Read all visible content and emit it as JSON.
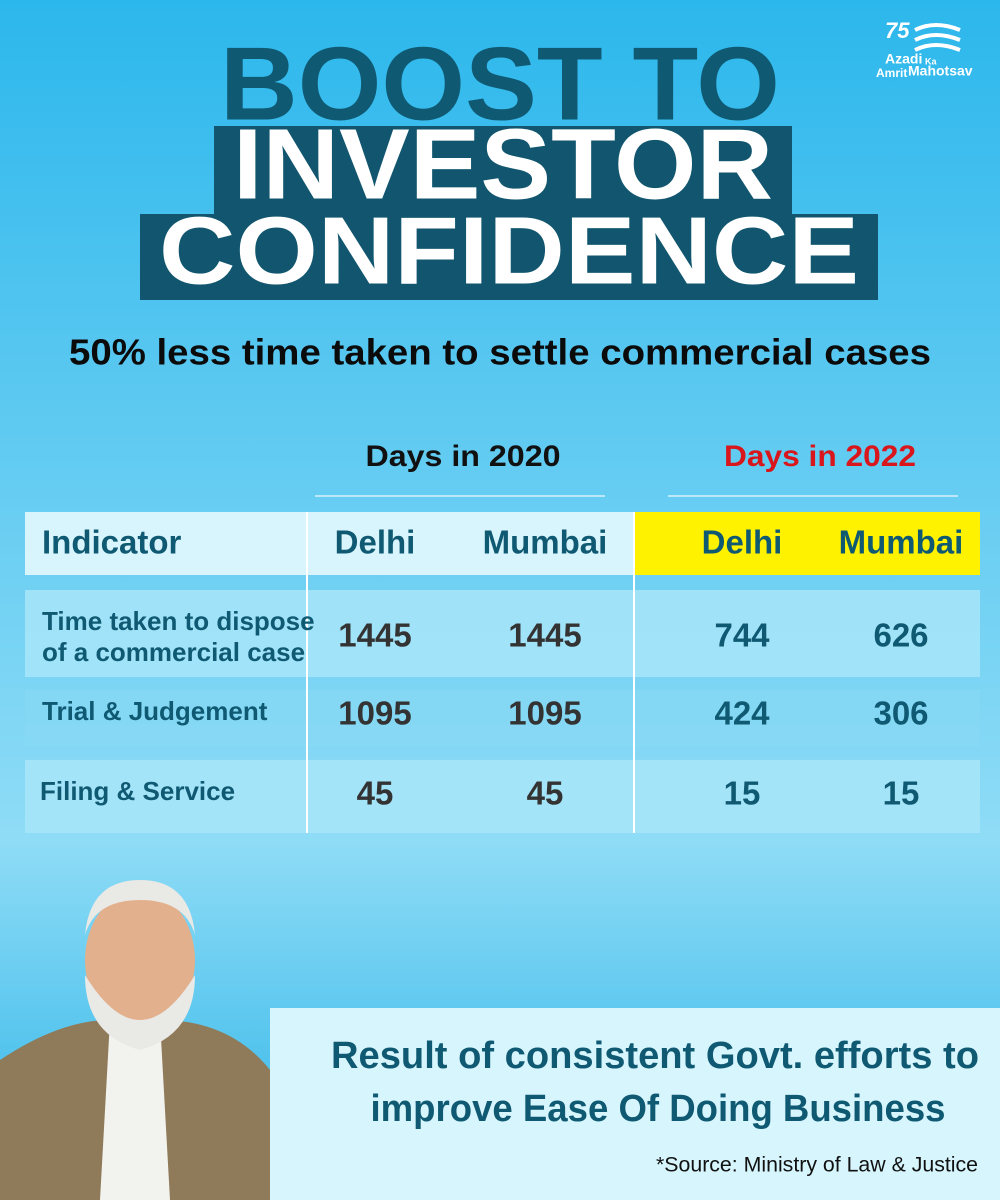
{
  "logo": {
    "number": "75",
    "line1": "Azadi",
    "small": "Ka",
    "line2a": "Amrit",
    "line2b": "Mahotsav"
  },
  "header": {
    "title_lines": [
      "BOOST TO",
      "INVESTOR",
      "CONFIDENCE"
    ],
    "subtitle": "50% less time taken to settle commercial cases"
  },
  "table": {
    "groups": [
      "Days in 2020",
      "Days in 2022"
    ],
    "columns": [
      "Indicator",
      "Delhi",
      "Mumbai",
      "Delhi",
      "Mumbai"
    ],
    "rows": [
      [
        [
          "Time taken to dispose",
          "of a commercial case"
        ],
        1445,
        1445,
        744,
        626
      ],
      [
        [
          "Trial & Judgement"
        ],
        1095,
        1095,
        424,
        306
      ],
      [
        [
          "Filing & Service"
        ],
        45,
        45,
        15,
        15
      ]
    ]
  },
  "footer": {
    "message_lines": [
      "Result of consistent Govt. efforts to",
      "improve Ease Of Doing Business"
    ],
    "source": "*Source: Ministry of Law & Justice"
  }
}
